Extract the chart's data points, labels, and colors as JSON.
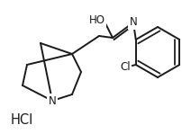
{
  "bg_color": "#ffffff",
  "line_color": "#1a1a1a",
  "line_width": 1.4,
  "font_size": 8.5,
  "hcl_text": "HCl",
  "cl_label": "Cl",
  "n_label": "N",
  "ho_label": "HO"
}
